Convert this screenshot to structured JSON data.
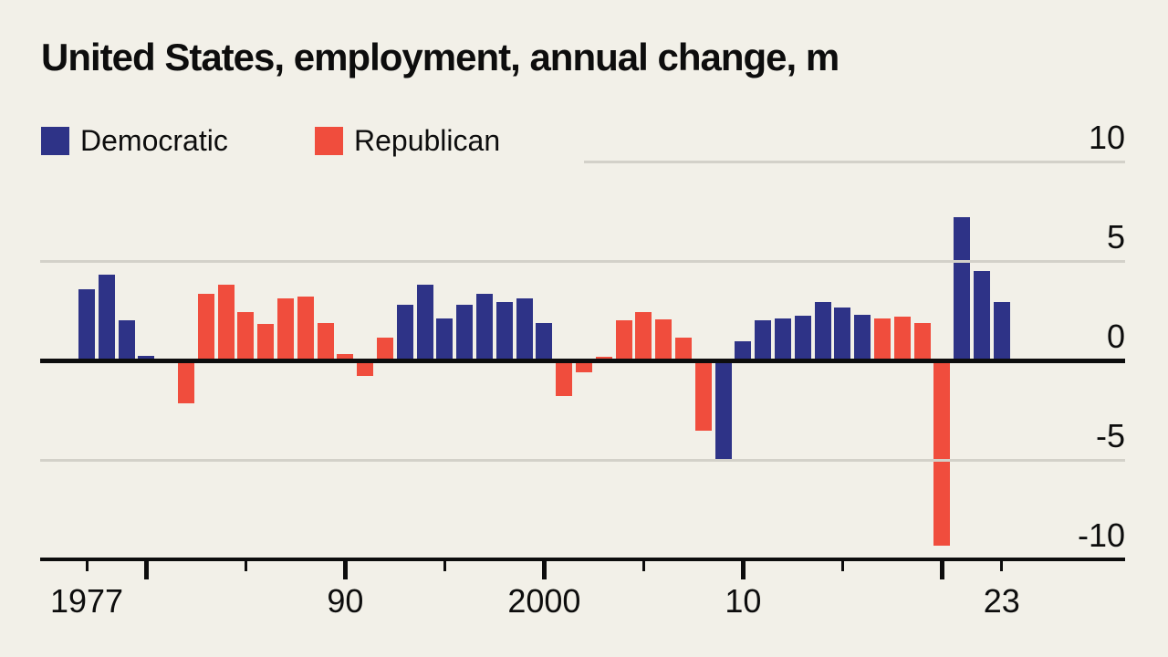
{
  "title": "United States, employment, annual change, m",
  "legend": [
    {
      "label": "Democratic",
      "color": "#2e3387"
    },
    {
      "label": "Republican",
      "color": "#f04d3d"
    }
  ],
  "colors": {
    "background": "#f2f0e8",
    "democratic_blue": "#2e3387",
    "republican_red": "#f04d3d",
    "gridline_gray": "#d3d1c9",
    "axis_black": "#0d0d0d",
    "text": "#0d0d0d"
  },
  "chart_data": {
    "type": "bar",
    "title": "United States, employment, annual change, m",
    "unit": "m",
    "xlabel": "",
    "ylabel": "",
    "ylim": [
      -10,
      10
    ],
    "grid": true,
    "legend_position": "top-left",
    "categories": [
      1977,
      1978,
      1979,
      1980,
      1981,
      1982,
      1983,
      1984,
      1985,
      1986,
      1987,
      1988,
      1989,
      1990,
      1991,
      1992,
      1993,
      1994,
      1995,
      1996,
      1997,
      1998,
      1999,
      2000,
      2001,
      2002,
      2003,
      2004,
      2005,
      2006,
      2007,
      2008,
      2009,
      2010,
      2011,
      2012,
      2013,
      2014,
      2015,
      2016,
      2017,
      2018,
      2019,
      2020,
      2021,
      2022,
      2023
    ],
    "values": [
      3.6,
      4.3,
      2.0,
      0.25,
      0.0,
      -2.15,
      3.35,
      3.8,
      2.45,
      1.85,
      3.1,
      3.2,
      1.9,
      0.3,
      -0.8,
      1.15,
      2.8,
      3.8,
      2.1,
      2.8,
      3.35,
      2.95,
      3.1,
      1.9,
      -1.8,
      -0.6,
      0.2,
      2.0,
      2.45,
      2.05,
      1.15,
      -3.55,
      -5.05,
      0.95,
      2.0,
      2.1,
      2.25,
      2.95,
      2.65,
      2.3,
      2.1,
      2.2,
      1.9,
      -9.3,
      7.2,
      4.5,
      2.95
    ],
    "parties": [
      "D",
      "D",
      "D",
      "D",
      "R",
      "R",
      "R",
      "R",
      "R",
      "R",
      "R",
      "R",
      "R",
      "R",
      "R",
      "R",
      "D",
      "D",
      "D",
      "D",
      "D",
      "D",
      "D",
      "D",
      "R",
      "R",
      "R",
      "R",
      "R",
      "R",
      "R",
      "R",
      "D",
      "D",
      "D",
      "D",
      "D",
      "D",
      "D",
      "D",
      "R",
      "R",
      "R",
      "R",
      "D",
      "D",
      "D"
    ],
    "y_axis": {
      "ticks": [
        {
          "value": 10,
          "label": "10",
          "grid": "gray",
          "grid_start_x": 640
        },
        {
          "value": 5,
          "label": "5",
          "grid": "gray"
        },
        {
          "value": 0,
          "label": "0",
          "grid": "zero"
        },
        {
          "value": -5,
          "label": "-5",
          "grid": "gray"
        },
        {
          "value": -10,
          "label": "-10",
          "grid": "base"
        }
      ]
    },
    "x_axis": {
      "ticks": [
        {
          "year": 1977,
          "label": "1977",
          "len": "short"
        },
        {
          "year": 1980,
          "label": "",
          "len": "long"
        },
        {
          "year": 1985,
          "label": "",
          "len": "short"
        },
        {
          "year": 1990,
          "label": "90",
          "len": "long"
        },
        {
          "year": 1995,
          "label": "",
          "len": "short"
        },
        {
          "year": 2000,
          "label": "2000",
          "len": "long"
        },
        {
          "year": 2005,
          "label": "",
          "len": "short"
        },
        {
          "year": 2010,
          "label": "10",
          "len": "long"
        },
        {
          "year": 2015,
          "label": "",
          "len": "short"
        },
        {
          "year": 2020,
          "label": "",
          "len": "long"
        },
        {
          "year": 2023,
          "label": "23",
          "len": "short"
        }
      ]
    }
  }
}
